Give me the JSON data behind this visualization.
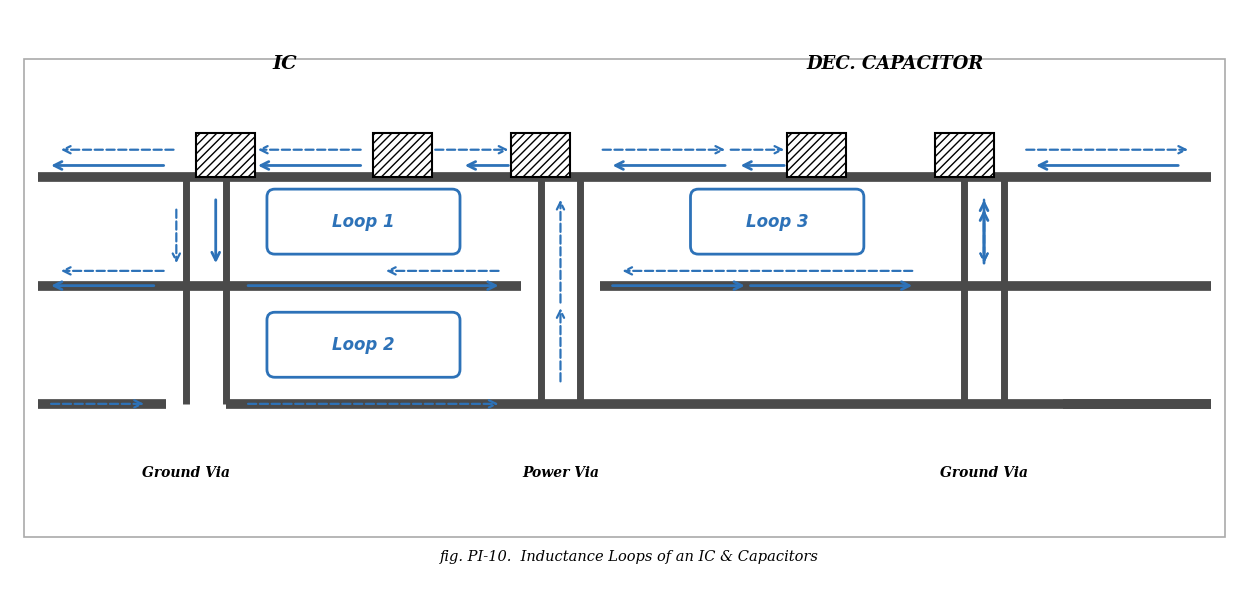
{
  "fig_width": 12.49,
  "fig_height": 5.91,
  "bg_color": "#ffffff",
  "border_color": "#999999",
  "dark_gray": "#4a4a4a",
  "blue": "#2d72b8",
  "title": "fig. PI-10.  Inductance Loops of an IC & Capacitors",
  "ic_label": "IC",
  "cap_label": "DEC. CAPACITOR",
  "loop1_label": "Loop 1",
  "loop2_label": "Loop 2",
  "loop3_label": "Loop 3",
  "gnd_via1": "Ground Via",
  "pwr_via": "Power Via",
  "gnd_via2": "Ground Via",
  "xlim": [
    0,
    125
  ],
  "ylim": [
    0,
    60
  ]
}
